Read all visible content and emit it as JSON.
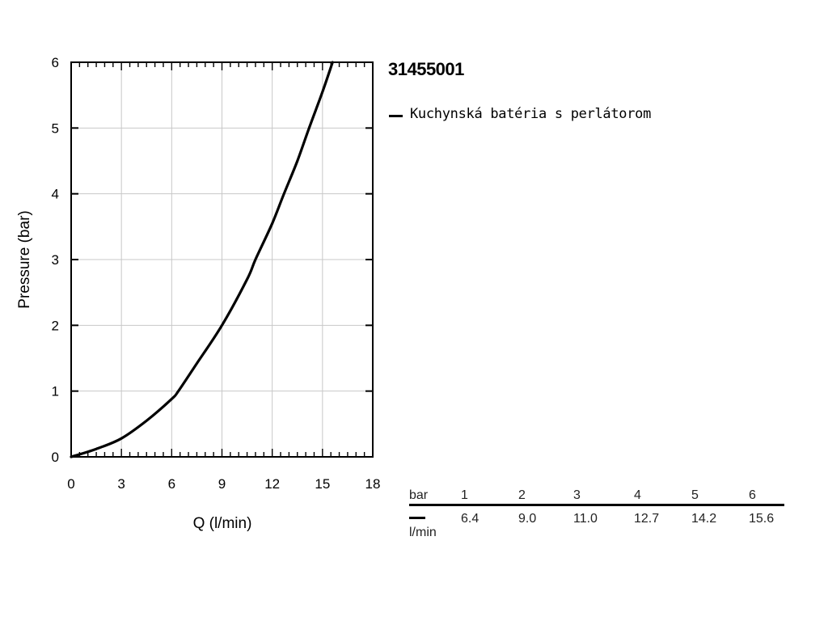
{
  "product": {
    "code": "31455001"
  },
  "legend": {
    "label": "Kuchynská batéria s perlátorom",
    "color": "#000000"
  },
  "chart_data": {
    "type": "line",
    "xlabel": "Q (l/min)",
    "ylabel": "Pressure (bar)",
    "xlim": [
      0,
      18
    ],
    "ylim": [
      0,
      6
    ],
    "xticks": [
      0,
      3,
      6,
      9,
      12,
      15,
      18
    ],
    "yticks": [
      0,
      1,
      2,
      3,
      4,
      5,
      6
    ],
    "grid": true,
    "series": [
      {
        "name": "Kuchynská batéria s perlátorom",
        "color": "#000000",
        "x": [
          0,
          1.5,
          3,
          4.5,
          6,
          6.4,
          7.5,
          9,
          10.5,
          11,
          12,
          12.7,
          13.5,
          14.2,
          15,
          15.6
        ],
        "y": [
          0,
          0.12,
          0.28,
          0.55,
          0.88,
          1,
          1.42,
          2,
          2.7,
          3,
          3.55,
          4,
          4.5,
          5,
          5.55,
          6
        ]
      }
    ]
  },
  "flow_table": {
    "header_label": "bar",
    "unit_label": "l/min",
    "pressures": [
      "1",
      "2",
      "3",
      "4",
      "5",
      "6"
    ],
    "flows": [
      "6.4",
      "9.0",
      "11.0",
      "12.7",
      "14.2",
      "15.6"
    ]
  }
}
